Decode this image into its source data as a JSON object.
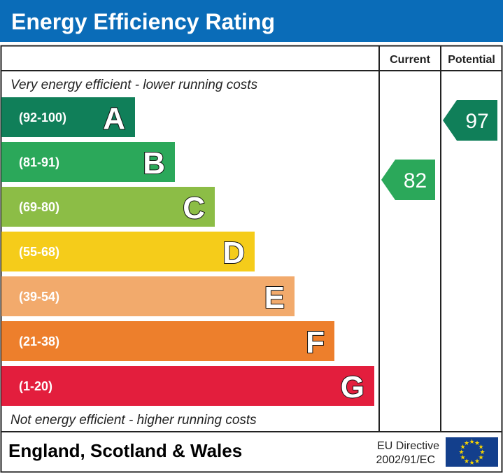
{
  "chart_data": {
    "type": "bar",
    "title": "Energy Efficiency Rating",
    "columns": {
      "current": "Current",
      "potential": "Potential"
    },
    "top_note": "Very energy efficient - lower running costs",
    "bottom_note": "Not energy efficient - higher running costs",
    "bands": [
      {
        "letter": "A",
        "range": "(92-100)",
        "color": "#107f59"
      },
      {
        "letter": "B",
        "range": "(81-91)",
        "color": "#2ba85a"
      },
      {
        "letter": "C",
        "range": "(69-80)",
        "color": "#8cbd46"
      },
      {
        "letter": "D",
        "range": "(55-68)",
        "color": "#f5cc1a"
      },
      {
        "letter": "E",
        "range": "(39-54)",
        "color": "#f2aa6c"
      },
      {
        "letter": "F",
        "range": "(21-38)",
        "color": "#ed7f2c"
      },
      {
        "letter": "G",
        "range": "(1-20)",
        "color": "#e31e3d"
      }
    ],
    "current": {
      "value": "82",
      "band": "B"
    },
    "potential": {
      "value": "97",
      "band": "A"
    }
  },
  "footer": {
    "region": "England, Scotland & Wales",
    "directive_line1": "EU Directive",
    "directive_line2": "2002/91/EC"
  },
  "colors": {
    "header": "#0a6cb8",
    "eu_flag": "#133f8c",
    "eu_stars": "#f7d400"
  }
}
